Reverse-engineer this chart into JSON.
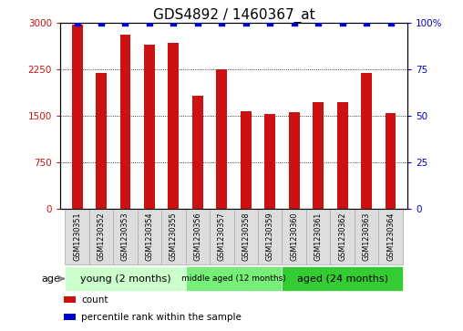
{
  "title": "GDS4892 / 1460367_at",
  "samples": [
    "GSM1230351",
    "GSM1230352",
    "GSM1230353",
    "GSM1230354",
    "GSM1230355",
    "GSM1230356",
    "GSM1230357",
    "GSM1230358",
    "GSM1230359",
    "GSM1230360",
    "GSM1230361",
    "GSM1230362",
    "GSM1230363",
    "GSM1230364"
  ],
  "counts": [
    2980,
    2200,
    2820,
    2650,
    2680,
    1820,
    2250,
    1580,
    1530,
    1560,
    1720,
    1720,
    2200,
    1540
  ],
  "percentile_ranks": [
    100,
    100,
    100,
    100,
    100,
    100,
    100,
    100,
    100,
    100,
    100,
    100,
    100,
    100
  ],
  "bar_color": "#cc1111",
  "dot_color": "#0000cc",
  "ylim_left": [
    0,
    3000
  ],
  "ylim_right": [
    0,
    100
  ],
  "yticks_left": [
    0,
    750,
    1500,
    2250,
    3000
  ],
  "yticks_right": [
    0,
    25,
    50,
    75,
    100
  ],
  "groups": [
    {
      "label": "young (2 months)",
      "start": 0,
      "end": 5,
      "color": "#ccffcc"
    },
    {
      "label": "middle aged (12 months)",
      "start": 5,
      "end": 9,
      "color": "#77ee77"
    },
    {
      "label": "aged (24 months)",
      "start": 9,
      "end": 14,
      "color": "#33cc33"
    }
  ],
  "age_label": "age",
  "legend_count_label": "count",
  "legend_percentile_label": "percentile rank within the sample",
  "background_color": "#ffffff",
  "plot_bg_color": "#ffffff",
  "tick_label_color_left": "#cc1111",
  "tick_label_color_right": "#0000cc",
  "title_fontsize": 11,
  "bar_width": 0.45,
  "sample_box_color": "#dddddd",
  "sample_box_edge": "#aaaaaa"
}
